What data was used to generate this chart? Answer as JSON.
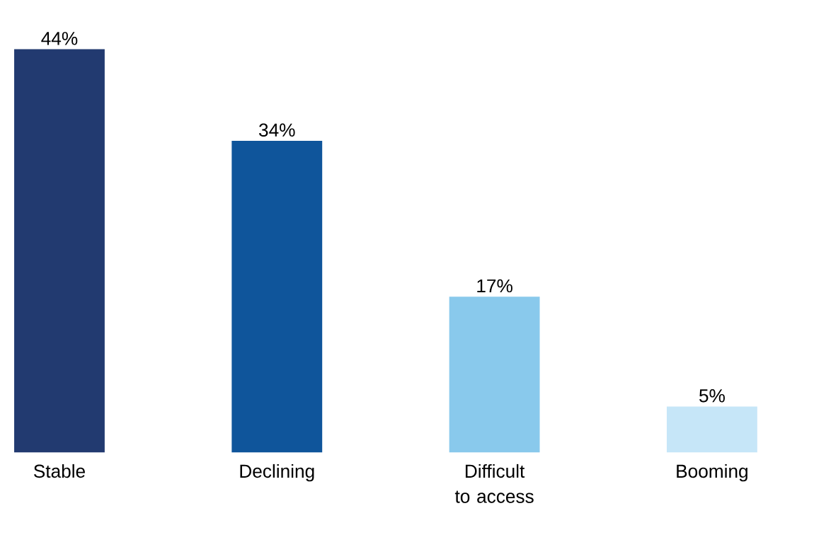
{
  "chart_data": {
    "type": "bar",
    "categories": [
      "Stable",
      "Declining",
      "Difficult to access",
      "Booming"
    ],
    "values": [
      44,
      34,
      17,
      5
    ],
    "colors": [
      "#223a70",
      "#0f559b",
      "#89c9ec",
      "#c6e6f8"
    ],
    "value_labels": [
      "44%",
      "34%",
      "17%",
      "5%"
    ]
  }
}
